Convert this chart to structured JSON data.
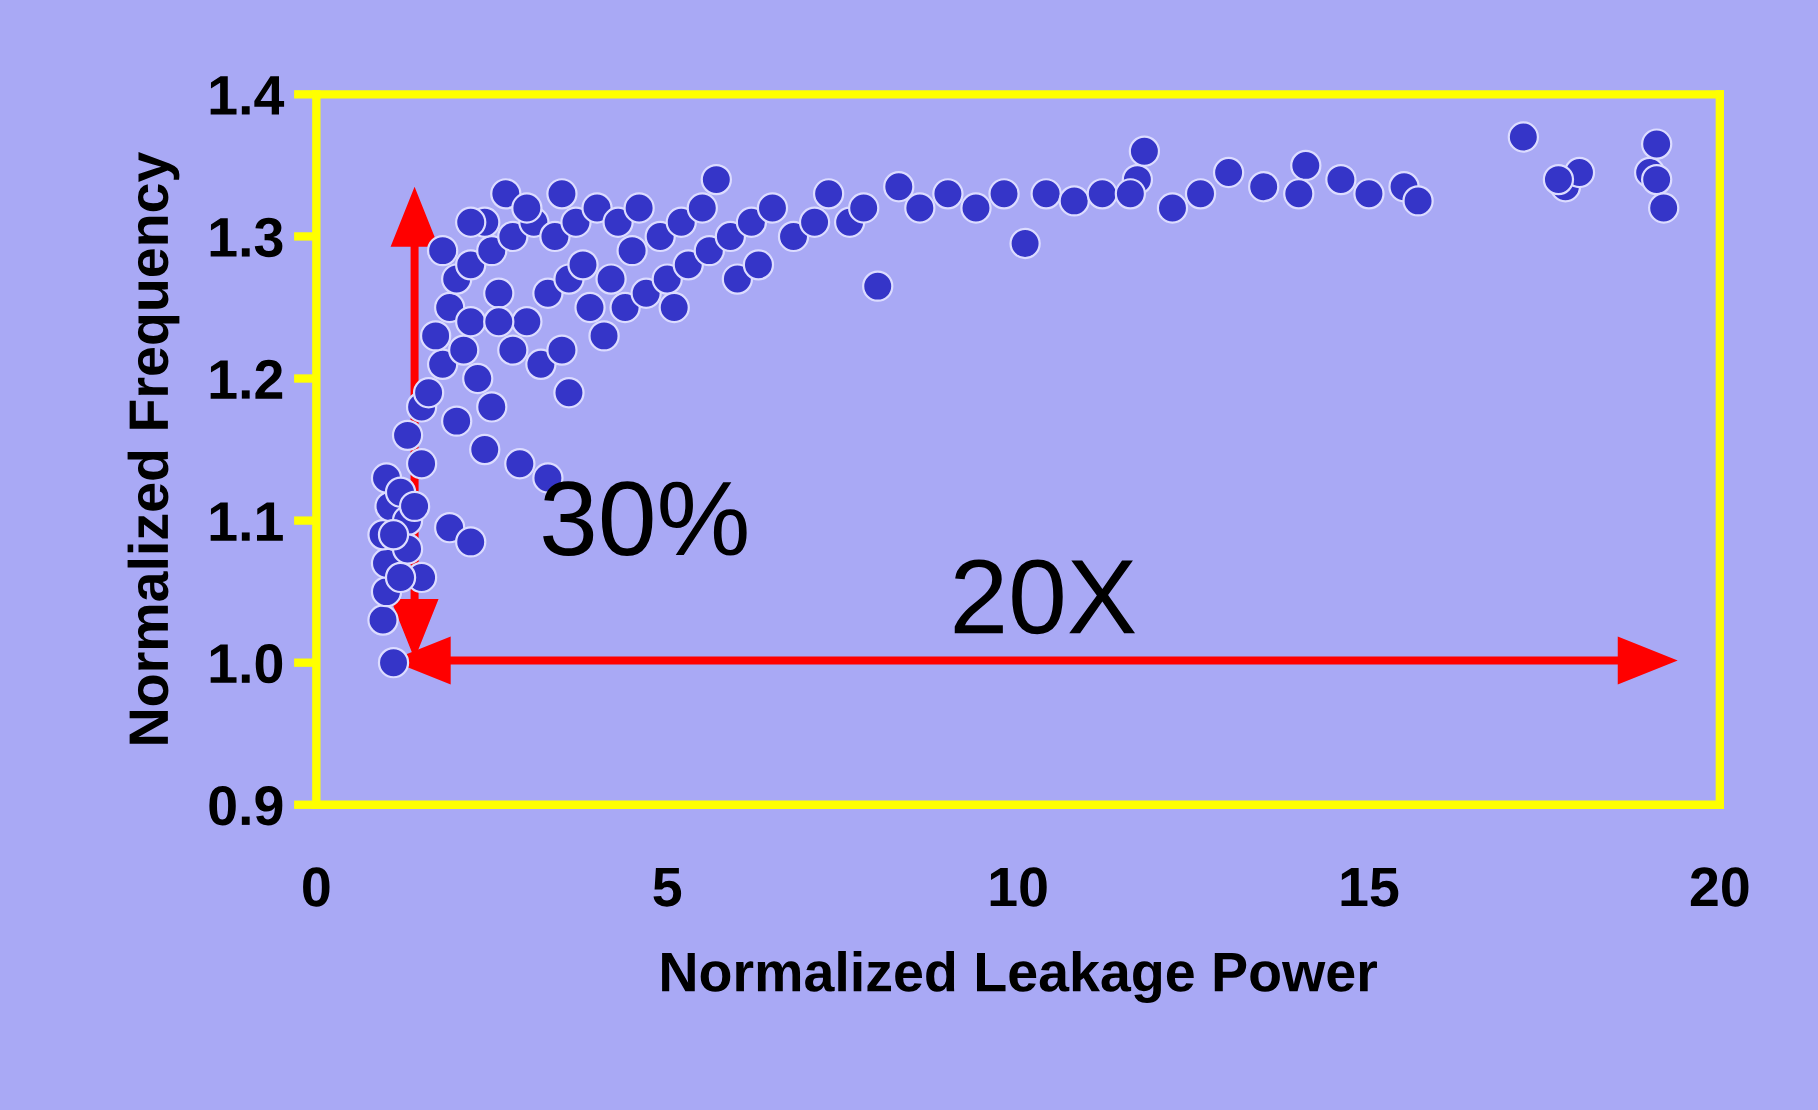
{
  "chart_data": {
    "type": "scatter",
    "xlabel": "Normalized Leakage Power",
    "ylabel": "Normalized Frequency",
    "xlim": [
      0,
      20
    ],
    "ylim": [
      0.9,
      1.4
    ],
    "xticks": [
      0,
      5,
      10,
      15,
      20
    ],
    "yticks": [
      {
        "value": 0.9,
        "label": "0.9"
      },
      {
        "value": 1.0,
        "label": "1.0"
      },
      {
        "value": 1.1,
        "label": "1.1"
      },
      {
        "value": 1.2,
        "label": "1.2"
      },
      {
        "value": 1.3,
        "label": "1.3"
      },
      {
        "value": 1.4,
        "label": "1.4"
      }
    ],
    "grid": false,
    "marker": "circle",
    "series": [
      {
        "color": "#3535c8",
        "x": [
          1.1,
          0.95,
          1.0,
          1.0,
          0.95,
          1.05,
          1.0,
          1.2,
          1.3,
          1.4,
          1.3,
          1.5,
          1.9,
          2.2,
          1.2,
          1.1,
          1.3,
          1.5,
          1.6,
          1.8,
          1.7,
          1.9,
          2.0,
          2.2,
          2.1,
          2.3,
          2.5,
          2.0,
          2.4,
          2.9,
          3.3,
          1.5,
          2.2,
          2.6,
          2.8,
          3.0,
          3.2,
          3.5,
          3.3,
          3.6,
          3.9,
          4.1,
          4.4,
          4.7,
          5.0,
          5.3,
          5.6,
          6.0,
          6.3,
          2.5,
          2.8,
          3.1,
          3.4,
          3.7,
          4.0,
          4.3,
          4.6,
          4.9,
          5.2,
          5.5,
          5.7,
          5.9,
          6.2,
          6.5,
          6.8,
          7.1,
          7.3,
          7.6,
          7.8,
          8.0,
          8.3,
          8.6,
          9.0,
          9.4,
          9.8,
          10.1,
          10.4,
          10.8,
          11.2,
          11.7,
          11.8,
          11.6,
          12.2,
          12.6,
          13.0,
          13.5,
          14.1,
          14.0,
          14.6,
          15.0,
          15.5,
          15.7,
          17.2,
          17.8,
          18.0,
          17.7,
          19.0,
          19.1,
          19.1,
          19.2,
          3.8,
          4.2,
          2.4,
          2.7,
          3.0,
          3.5,
          4.5,
          5.1,
          3.6,
          2.6,
          1.8,
          2.2
        ],
        "values": [
          1.0,
          1.03,
          1.05,
          1.07,
          1.09,
          1.11,
          1.13,
          1.12,
          1.1,
          1.11,
          1.08,
          1.06,
          1.095,
          1.085,
          1.06,
          1.09,
          1.16,
          1.18,
          1.19,
          1.21,
          1.23,
          1.25,
          1.27,
          1.28,
          1.22,
          1.2,
          1.18,
          1.17,
          1.15,
          1.14,
          1.13,
          1.14,
          1.24,
          1.26,
          1.22,
          1.24,
          1.21,
          1.22,
          1.26,
          1.27,
          1.25,
          1.23,
          1.25,
          1.26,
          1.27,
          1.28,
          1.29,
          1.27,
          1.28,
          1.29,
          1.3,
          1.31,
          1.3,
          1.31,
          1.32,
          1.31,
          1.32,
          1.3,
          1.31,
          1.32,
          1.34,
          1.3,
          1.31,
          1.32,
          1.3,
          1.31,
          1.33,
          1.31,
          1.32,
          1.265,
          1.335,
          1.32,
          1.33,
          1.32,
          1.33,
          1.295,
          1.33,
          1.325,
          1.33,
          1.34,
          1.36,
          1.33,
          1.32,
          1.33,
          1.345,
          1.335,
          1.35,
          1.33,
          1.34,
          1.33,
          1.335,
          1.325,
          1.37,
          1.335,
          1.345,
          1.34,
          1.345,
          1.365,
          1.34,
          1.32,
          1.28,
          1.27,
          1.31,
          1.33,
          1.32,
          1.33,
          1.29,
          1.25,
          1.19,
          1.24,
          1.29,
          1.31
        ]
      }
    ],
    "annotations": [
      "30%",
      "20X"
    ]
  }
}
